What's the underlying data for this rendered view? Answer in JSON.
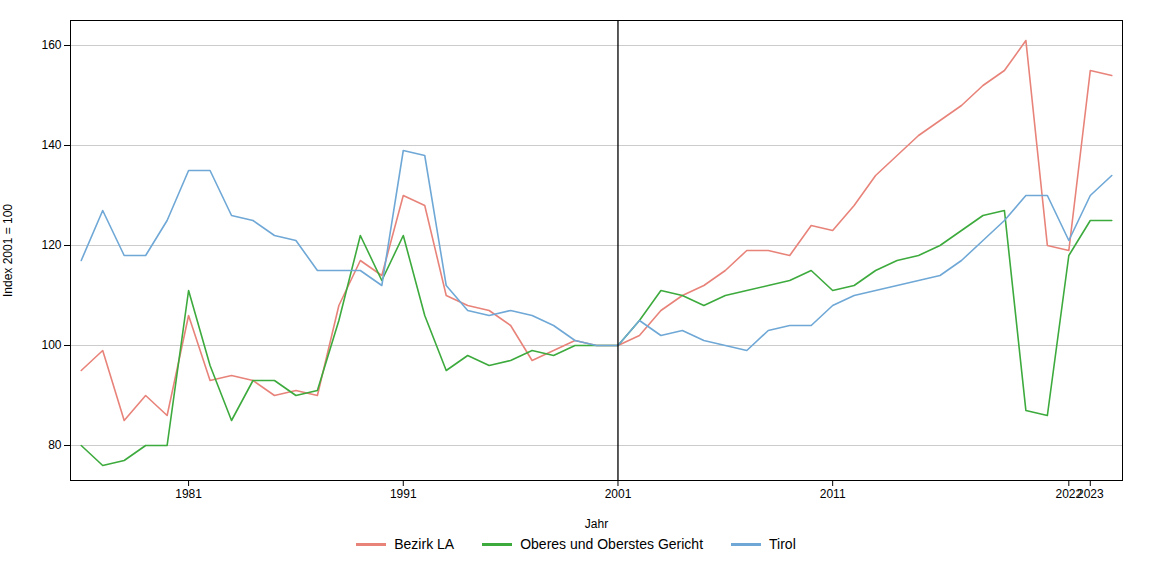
{
  "chart_data": {
    "type": "line",
    "xlabel": "Jahr",
    "ylabel": "Index 2001 = 100",
    "x": [
      1976,
      1977,
      1978,
      1979,
      1980,
      1981,
      1982,
      1983,
      1984,
      1985,
      1986,
      1987,
      1988,
      1989,
      1990,
      1991,
      1992,
      1993,
      1994,
      1995,
      1996,
      1997,
      1998,
      1999,
      2000,
      2001,
      2002,
      2003,
      2004,
      2005,
      2006,
      2007,
      2008,
      2009,
      2010,
      2011,
      2012,
      2013,
      2014,
      2015,
      2016,
      2017,
      2018,
      2019,
      2020,
      2021,
      2022,
      2023,
      2024
    ],
    "series": [
      {
        "name": "Bezirk LA",
        "color": "#E8837A",
        "values": [
          95,
          99,
          85,
          90,
          86,
          106,
          93,
          94,
          93,
          90,
          91,
          90,
          108,
          117,
          114,
          130,
          128,
          110,
          108,
          107,
          104,
          97,
          99,
          101,
          100,
          100,
          102,
          107,
          110,
          112,
          115,
          119,
          119,
          118,
          124,
          123,
          128,
          134,
          138,
          142,
          145,
          148,
          152,
          155,
          161,
          120,
          119,
          155,
          154
        ]
      },
      {
        "name": "Oberes und Oberstes Gericht",
        "color": "#3DAA3D",
        "values": [
          80,
          76,
          77,
          80,
          80,
          111,
          96,
          85,
          93,
          93,
          90,
          91,
          105,
          122,
          113,
          122,
          106,
          95,
          98,
          96,
          97,
          99,
          98,
          100,
          100,
          100,
          105,
          111,
          110,
          108,
          110,
          111,
          112,
          113,
          115,
          111,
          112,
          115,
          117,
          118,
          120,
          123,
          126,
          127,
          87,
          86,
          118,
          125,
          125
        ]
      },
      {
        "name": "Tirol",
        "color": "#6FA8D6",
        "values": [
          117,
          127,
          118,
          118,
          125,
          135,
          135,
          126,
          125,
          122,
          121,
          115,
          115,
          115,
          112,
          139,
          138,
          112,
          107,
          106,
          107,
          106,
          104,
          101,
          100,
          100,
          105,
          102,
          103,
          101,
          100,
          99,
          103,
          104,
          104,
          108,
          110,
          111,
          112,
          113,
          114,
          117,
          121,
          125,
          130,
          130,
          121,
          130,
          134
        ]
      }
    ],
    "vlines": [
      2001
    ],
    "xlim": [
      1975.5,
      2024.5
    ],
    "xticks": [
      1981,
      1991,
      2001,
      2011,
      2022,
      2023
    ],
    "ylim": [
      73,
      165
    ],
    "yticks": [
      80,
      100,
      120,
      140,
      160
    ],
    "grid": "y",
    "legend": "bottom"
  }
}
